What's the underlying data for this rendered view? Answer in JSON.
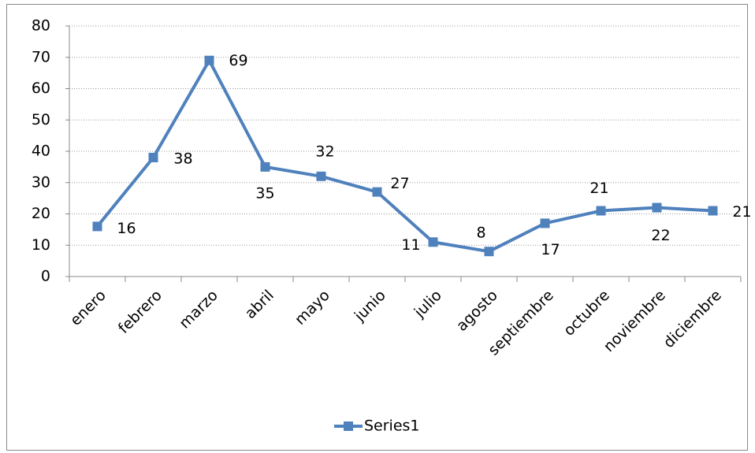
{
  "chart_data": {
    "type": "line",
    "categories": [
      "enero",
      "febrero",
      "marzo",
      "abril",
      "mayo",
      "junio",
      "julio",
      "agosto",
      "septiembre",
      "octubre",
      "noviembre",
      "diciembre"
    ],
    "series": [
      {
        "name": "Series1",
        "color": "#4f81bd",
        "values": [
          16,
          38,
          69,
          35,
          32,
          27,
          11,
          8,
          17,
          21,
          22,
          21
        ]
      }
    ],
    "ylim": [
      0,
      80
    ],
    "yticks": [
      0,
      10,
      20,
      30,
      40,
      50,
      60,
      70,
      80
    ],
    "grid": true,
    "legend": "bottom"
  }
}
